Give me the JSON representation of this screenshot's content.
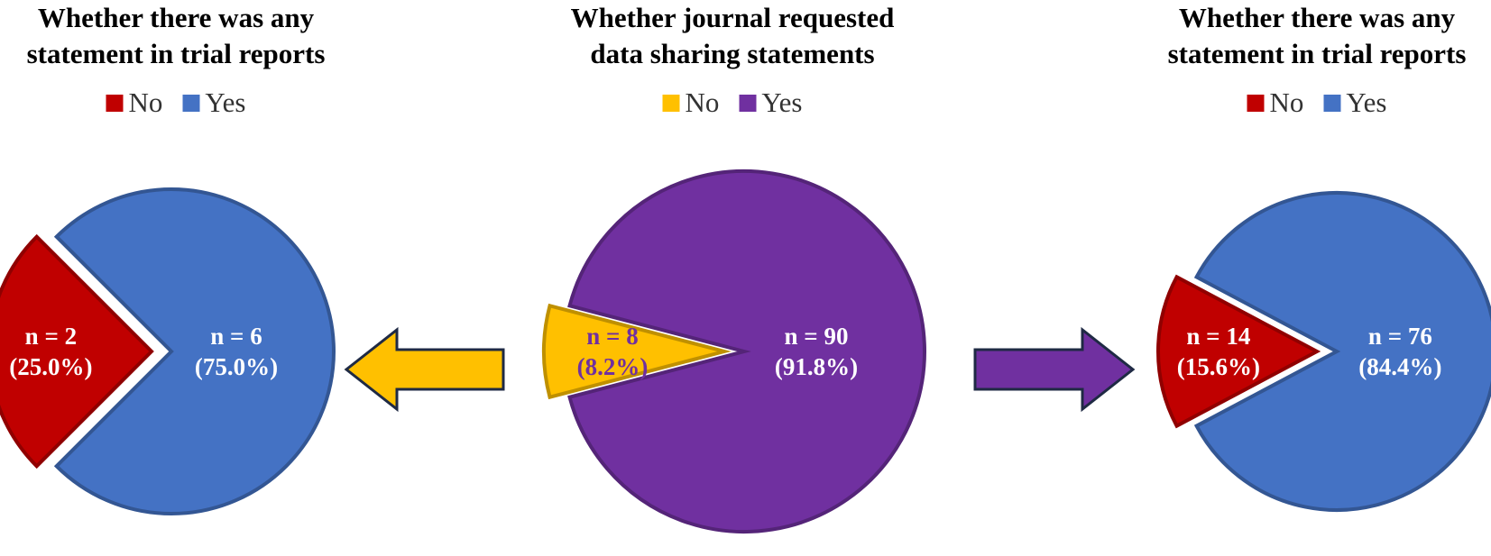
{
  "chart_data": [
    {
      "type": "pie",
      "title": "Whether there was any\nstatement in trial reports",
      "categories": [
        "No",
        "Yes"
      ],
      "values": [
        2,
        6
      ],
      "value_labels": [
        "n = 2\n(25.0%)",
        "n = 6\n(75.0%)"
      ],
      "colors": [
        "#c00000",
        "#4472c4"
      ],
      "label_colors": [
        "#ffffff",
        "#ffffff"
      ]
    },
    {
      "type": "pie",
      "title": "Whether journal requested\ndata sharing statements",
      "categories": [
        "No",
        "Yes"
      ],
      "values": [
        8,
        90
      ],
      "value_labels": [
        "n = 8\n(8.2%)",
        "n = 90\n(91.8%)"
      ],
      "colors": [
        "#ffc000",
        "#7030a0"
      ],
      "label_colors": [
        "#7030a0",
        "#ffffff"
      ]
    },
    {
      "type": "pie",
      "title": "Whether there was any\nstatement in trial reports",
      "categories": [
        "No",
        "Yes"
      ],
      "values": [
        14,
        76
      ],
      "value_labels": [
        "n = 14\n(15.6%)",
        "n = 76\n(84.4%)"
      ],
      "colors": [
        "#c00000",
        "#4472c4"
      ],
      "label_colors": [
        "#ffffff",
        "#ffffff"
      ]
    }
  ]
}
